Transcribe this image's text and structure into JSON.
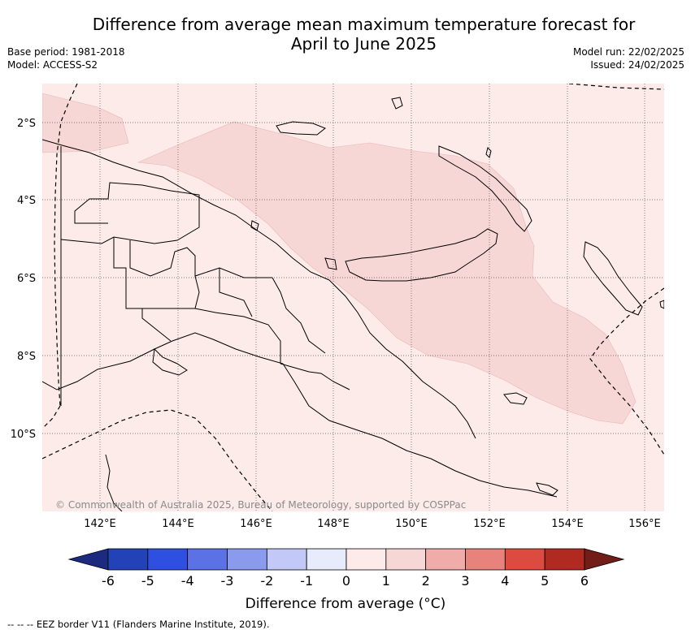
{
  "header": {
    "title_line1": "Difference from average mean maximum temperature forecast for",
    "title_line2": "April to June 2025",
    "base_period": "Base period: 1981-2018",
    "model": "Model: ACCESS-S2",
    "model_run": "Model run: 22/02/2025",
    "issued": "Issued: 24/02/2025"
  },
  "map": {
    "lat_labels": [
      "2°S",
      "4°S",
      "6°S",
      "8°S",
      "10°S"
    ],
    "lon_labels": [
      "142°E",
      "144°E",
      "146°E",
      "148°E",
      "150°E",
      "152°E",
      "154°E",
      "156°E"
    ],
    "copyright": "© Commonwealth of Australia 2025, Bureau of Meteorology, supported by COSPPac",
    "background_class_color": "#fcebe9",
    "warm_class_color": "#f7d7d5"
  },
  "legend": {
    "ticks": [
      "-6",
      "-5",
      "-4",
      "-3",
      "-2",
      "-1",
      "0",
      "1",
      "2",
      "3",
      "4",
      "5",
      "6"
    ],
    "colors": [
      "#1c2a80",
      "#2442b8",
      "#2f4fe0",
      "#5a72e6",
      "#8a9bee",
      "#c2c9f6",
      "#e7ebfb",
      "#fcebe9",
      "#f7d7d5",
      "#f0aca8",
      "#e8837c",
      "#dd4a3f",
      "#b02a22",
      "#731d18"
    ],
    "label": "Difference from average (°C)"
  },
  "footnote": "-- -- -- EEZ border V11 (Flanders Marine Institute, 2019)."
}
